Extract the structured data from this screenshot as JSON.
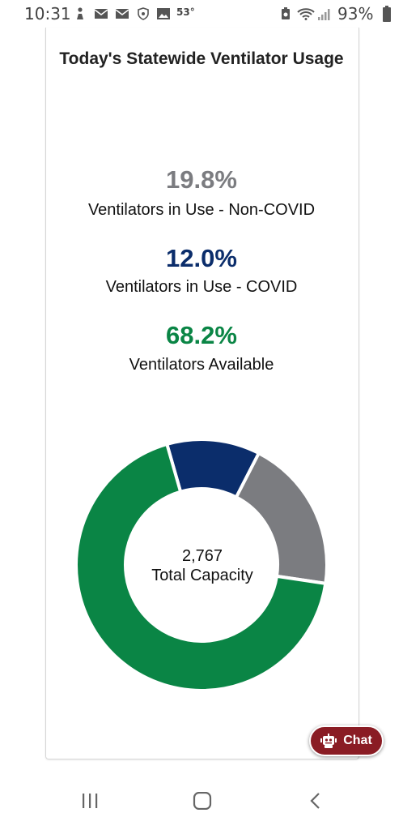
{
  "status_bar": {
    "time": "10:31",
    "temperature": "53°",
    "battery": "93%",
    "icons": [
      "person-icon",
      "mail-icon",
      "mail-icon",
      "shield-icon",
      "image-icon",
      "recycle-icon",
      "wifi-icon",
      "signal-icon",
      "battery-icon"
    ]
  },
  "card": {
    "title": "Today's Statewide Ventilator Usage"
  },
  "stats": [
    {
      "value": "19.8%",
      "label": "Ventilators in Use - Non-COVID",
      "color": "#7b7c80"
    },
    {
      "value": "12.0%",
      "label": "Ventilators in Use - COVID",
      "color": "#0b2d6b"
    },
    {
      "value": "68.2%",
      "label": "Ventilators Available",
      "color": "#0a8545"
    }
  ],
  "chart_data": {
    "type": "pie",
    "variant": "donut",
    "categories": [
      "Ventilators in Use - Non-COVID",
      "Ventilators in Use - COVID",
      "Ventilators Available"
    ],
    "values": [
      19.8,
      12.0,
      68.2
    ],
    "colors": [
      "#7b7c80",
      "#0b2d6b",
      "#0a8545"
    ],
    "center_value": "2,767",
    "center_label": "Total Capacity"
  },
  "chat": {
    "label": "Chat",
    "color": "#8a1c24"
  },
  "nav": {
    "icons": [
      "recent-apps-icon",
      "home-icon",
      "back-icon"
    ]
  }
}
